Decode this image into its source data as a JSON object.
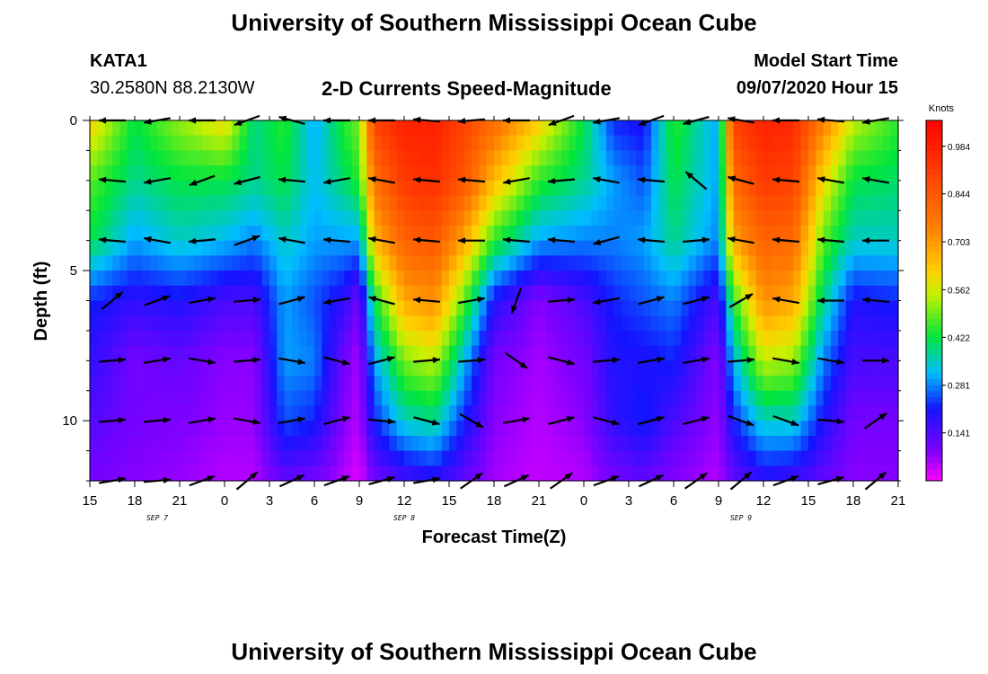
{
  "header": {
    "title": "University of Southern Mississippi Ocean Cube",
    "station": "KATA1",
    "coords": "30.2580N 88.2130W",
    "product": "2-D Currents Speed-Magnitude",
    "model_label": "Model Start Time",
    "model_time": "09/07/2020 Hour 15"
  },
  "footer": {
    "title": "University of Southern Mississippi Ocean Cube"
  },
  "chart_data": {
    "type": "heatmap",
    "title": "2-D Currents Speed-Magnitude",
    "xlabel": "Forecast Time(Z)",
    "ylabel": "Depth (ft)",
    "x_range_hours": [
      0,
      54
    ],
    "x_start": "2020-09-07 15Z",
    "x_tick_labels": [
      "15",
      "18",
      "21",
      "0",
      "3",
      "6",
      "9",
      "12",
      "15",
      "18",
      "21",
      "0",
      "3",
      "6",
      "9",
      "12",
      "15",
      "18",
      "21"
    ],
    "date_labels": [
      {
        "text": "SEP 7",
        "hour": 4.5
      },
      {
        "text": "SEP 8",
        "hour": 21
      },
      {
        "text": "SEP 9",
        "hour": 43.5
      }
    ],
    "ylim": [
      0,
      12
    ],
    "y_reversed": true,
    "y_tick_labels": [
      "0",
      "5",
      "10"
    ],
    "y_ticks": [
      0,
      5,
      10
    ],
    "depth_rows": [
      0,
      2,
      4,
      6,
      8,
      10,
      12
    ],
    "colorbar": {
      "unit": "Knots",
      "labels": [
        "0.984",
        "0.844",
        "0.703",
        "0.562",
        "0.422",
        "0.281",
        "0.141"
      ],
      "values": [
        0.984,
        0.844,
        0.703,
        0.562,
        0.422,
        0.281,
        0.141
      ],
      "min": 0.0,
      "max": 1.06
    },
    "speed_profiles": [
      {
        "hour": 0,
        "speeds": [
          0.62,
          0.48,
          0.42,
          0.22,
          0.18,
          0.14,
          0.1
        ]
      },
      {
        "hour": 3,
        "speeds": [
          0.42,
          0.38,
          0.3,
          0.18,
          0.1,
          0.1,
          0.08
        ]
      },
      {
        "hour": 6,
        "speeds": [
          0.52,
          0.42,
          0.35,
          0.2,
          0.12,
          0.09,
          0.07
        ]
      },
      {
        "hour": 9,
        "speeds": [
          0.6,
          0.42,
          0.32,
          0.15,
          0.08,
          0.07,
          0.05
        ]
      },
      {
        "hour": 11,
        "speeds": [
          0.38,
          0.38,
          0.28,
          0.15,
          0.08,
          0.07,
          0.05
        ]
      },
      {
        "hour": 13,
        "speeds": [
          0.45,
          0.42,
          0.35,
          0.3,
          0.3,
          0.25,
          0.12
        ]
      },
      {
        "hour": 15,
        "speeds": [
          0.3,
          0.32,
          0.3,
          0.25,
          0.28,
          0.22,
          0.1
        ]
      },
      {
        "hour": 17,
        "speeds": [
          0.45,
          0.4,
          0.3,
          0.18,
          0.1,
          0.08,
          0.05
        ]
      },
      {
        "hour": 18,
        "speeds": [
          0.5,
          0.45,
          0.3,
          0.1,
          0.06,
          0.05,
          0.02
        ]
      },
      {
        "hour": 19,
        "speeds": [
          0.9,
          0.78,
          0.65,
          0.42,
          0.3,
          0.22,
          0.1
        ]
      },
      {
        "hour": 21,
        "speeds": [
          0.98,
          0.92,
          0.82,
          0.68,
          0.5,
          0.35,
          0.15
        ]
      },
      {
        "hour": 23,
        "speeds": [
          0.98,
          0.95,
          0.85,
          0.72,
          0.55,
          0.38,
          0.18
        ]
      },
      {
        "hour": 25,
        "speeds": [
          0.9,
          0.85,
          0.68,
          0.48,
          0.32,
          0.22,
          0.12
        ]
      },
      {
        "hour": 27,
        "speeds": [
          0.8,
          0.65,
          0.45,
          0.2,
          0.1,
          0.08,
          0.06
        ]
      },
      {
        "hour": 30,
        "speeds": [
          0.62,
          0.45,
          0.3,
          0.08,
          0.06,
          0.05,
          0.04
        ]
      },
      {
        "hour": 33,
        "speeds": [
          0.42,
          0.38,
          0.28,
          0.15,
          0.1,
          0.08,
          0.05
        ]
      },
      {
        "hour": 35,
        "speeds": [
          0.22,
          0.3,
          0.28,
          0.22,
          0.2,
          0.18,
          0.1
        ]
      },
      {
        "hour": 37,
        "speeds": [
          0.2,
          0.25,
          0.3,
          0.25,
          0.2,
          0.22,
          0.12
        ]
      },
      {
        "hour": 39,
        "speeds": [
          0.45,
          0.42,
          0.38,
          0.28,
          0.22,
          0.15,
          0.08
        ]
      },
      {
        "hour": 42,
        "speeds": [
          0.3,
          0.3,
          0.28,
          0.15,
          0.08,
          0.07,
          0.05
        ]
      },
      {
        "hour": 43,
        "speeds": [
          0.9,
          0.8,
          0.68,
          0.45,
          0.32,
          0.22,
          0.12
        ]
      },
      {
        "hour": 45,
        "speeds": [
          0.98,
          0.92,
          0.82,
          0.72,
          0.55,
          0.35,
          0.18
        ]
      },
      {
        "hour": 47,
        "speeds": [
          0.96,
          0.9,
          0.8,
          0.68,
          0.52,
          0.35,
          0.16
        ]
      },
      {
        "hour": 49,
        "speeds": [
          0.75,
          0.6,
          0.48,
          0.38,
          0.28,
          0.2,
          0.12
        ]
      },
      {
        "hour": 51,
        "speeds": [
          0.55,
          0.42,
          0.35,
          0.2,
          0.15,
          0.1,
          0.08
        ]
      },
      {
        "hour": 54,
        "speeds": [
          0.45,
          0.4,
          0.35,
          0.22,
          0.15,
          0.1,
          0.08
        ]
      }
    ],
    "vector_times": [
      1.5,
      4.5,
      7.5,
      10.5,
      13.5,
      16.5,
      19.5,
      22.5,
      25.5,
      28.5,
      31.5,
      34.5,
      37.5,
      40.5,
      43.5,
      46.5,
      49.5,
      52.5
    ],
    "vector_depths": [
      0,
      2,
      4,
      6,
      8,
      10,
      12
    ],
    "vector_angles_deg": [
      [
        180,
        190,
        180,
        200,
        165,
        180,
        180,
        175,
        185,
        180,
        200,
        190,
        200,
        195,
        170,
        180,
        175,
        190
      ],
      [
        175,
        190,
        200,
        195,
        175,
        190,
        170,
        175,
        175,
        190,
        185,
        170,
        175,
        140,
        165,
        175,
        170,
        170
      ],
      [
        175,
        170,
        185,
        20,
        170,
        175,
        170,
        175,
        180,
        175,
        175,
        195,
        175,
        5,
        170,
        175,
        175,
        180
      ],
      [
        40,
        20,
        10,
        5,
        15,
        190,
        165,
        175,
        10,
        250,
        5,
        190,
        15,
        15,
        30,
        170,
        180,
        175
      ],
      [
        5,
        10,
        350,
        5,
        350,
        345,
        15,
        5,
        5,
        325,
        345,
        5,
        10,
        10,
        5,
        350,
        350,
        0
      ],
      [
        5,
        5,
        10,
        350,
        10,
        15,
        355,
        345,
        330,
        10,
        15,
        345,
        15,
        15,
        340,
        340,
        355,
        35
      ],
      [
        10,
        5,
        20,
        40,
        25,
        20,
        15,
        10,
        35,
        25,
        35,
        20,
        25,
        35,
        40,
        20,
        15,
        40
      ]
    ]
  }
}
